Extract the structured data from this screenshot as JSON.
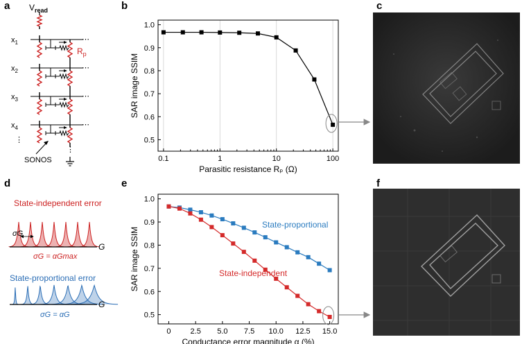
{
  "panels": {
    "a": "a",
    "b": "b",
    "c": "c",
    "d": "d",
    "e": "e",
    "f": "f"
  },
  "circuit": {
    "vread": "V",
    "vread_sub": "read",
    "rows": [
      {
        "label": "x",
        "sub": "1"
      },
      {
        "label": "x",
        "sub": "2"
      },
      {
        "label": "x",
        "sub": "3"
      },
      {
        "label": "x",
        "sub": "4"
      }
    ],
    "rp_label": "R",
    "rp_sub": "p",
    "sonos_label": "SONOS",
    "ellipsis": "⋮",
    "dots": "⋯",
    "resistor_color": "#cc2222"
  },
  "error_models": {
    "state_independent": {
      "title": "State-independent error",
      "sigma_label": "σG",
      "formula": "σG = αGmax",
      "axis": "G",
      "color": "#cc2222"
    },
    "state_proportional": {
      "title": "State-proportional error",
      "formula": "σG = αG",
      "axis": "G",
      "color": "#2a6db5"
    }
  },
  "chart_data": [
    {
      "id": "b",
      "type": "line",
      "title": "",
      "xlabel": "Parasitic resistance Rₚ (Ω)",
      "ylabel": "SAR image SSIM",
      "xscale": "log",
      "xlim": [
        0.08,
        125
      ],
      "ylim": [
        0.45,
        1.02
      ],
      "xticks": [
        0.1,
        1,
        10,
        100
      ],
      "xtick_labels": [
        "0.1",
        "1",
        "10",
        "100"
      ],
      "yticks": [
        0.5,
        0.6,
        0.7,
        0.8,
        0.9,
        1.0
      ],
      "ytick_labels": [
        "0.5",
        "0.6",
        "0.7",
        "0.8",
        "0.9",
        "1.0"
      ],
      "grid": "vertical",
      "series": [
        {
          "name": "SSIM",
          "color": "#000000",
          "marker": "square",
          "x": [
            0.1,
            0.22,
            0.47,
            1.0,
            2.2,
            4.7,
            10,
            22,
            47,
            100
          ],
          "y": [
            0.967,
            0.967,
            0.967,
            0.966,
            0.965,
            0.962,
            0.945,
            0.888,
            0.762,
            0.565
          ]
        }
      ],
      "highlight": {
        "series": 0,
        "index": 9
      }
    },
    {
      "id": "e",
      "type": "line",
      "title": "",
      "xlabel": "Conductance error magnitude α (%)",
      "ylabel": "SAR image SSIM",
      "xlim": [
        -1,
        15.8
      ],
      "ylim": [
        0.46,
        1.02
      ],
      "xticks": [
        0,
        2.5,
        5,
        7.5,
        10,
        12.5,
        15
      ],
      "xtick_labels": [
        "0",
        "2.5",
        "5.0",
        "7.5",
        "10.0",
        "12.5",
        "15.0"
      ],
      "yticks": [
        0.5,
        0.6,
        0.7,
        0.8,
        0.9,
        1.0
      ],
      "ytick_labels": [
        "0.5",
        "0.6",
        "0.7",
        "0.8",
        "0.9",
        "1.0"
      ],
      "grid": "none",
      "series": [
        {
          "name": "State-proportional",
          "color": "#2a7bbf",
          "marker": "square",
          "x": [
            0,
            1,
            2,
            3,
            4,
            5,
            6,
            7,
            8,
            9,
            10,
            11,
            12,
            13,
            14,
            15
          ],
          "y": [
            0.967,
            0.962,
            0.953,
            0.942,
            0.928,
            0.912,
            0.894,
            0.875,
            0.855,
            0.834,
            0.812,
            0.791,
            0.769,
            0.748,
            0.72,
            0.692
          ]
        },
        {
          "name": "State-independent",
          "color": "#d42a2a",
          "marker": "square",
          "x": [
            0,
            1,
            2,
            3,
            4,
            5,
            6,
            7,
            8,
            9,
            10,
            11,
            12,
            13,
            14,
            15
          ],
          "y": [
            0.967,
            0.958,
            0.937,
            0.91,
            0.878,
            0.843,
            0.807,
            0.771,
            0.733,
            0.694,
            0.655,
            0.618,
            0.581,
            0.545,
            0.515,
            0.49
          ]
        }
      ],
      "series_labels": [
        "State-proportional",
        "State-independent"
      ],
      "highlight": {
        "series": 1,
        "index": 15
      }
    }
  ]
}
